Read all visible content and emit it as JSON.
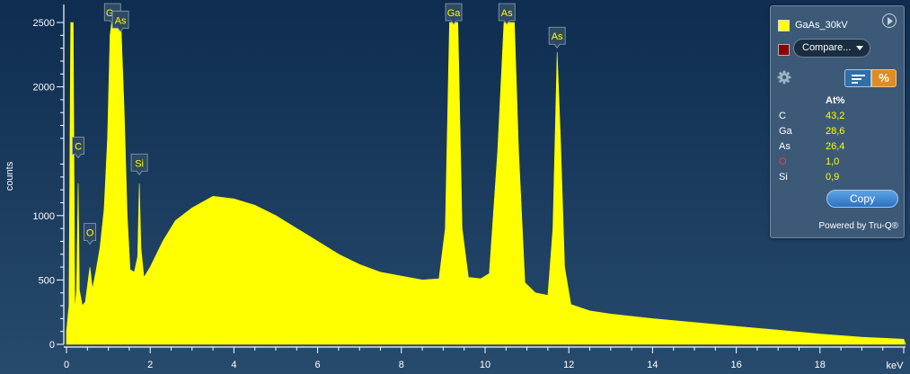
{
  "chart_data": {
    "type": "area",
    "ylabel": "counts",
    "xlabel": "keV",
    "xlim": [
      0,
      20
    ],
    "ylim": [
      0,
      2500
    ],
    "x_ticks": [
      "0",
      "2",
      "4",
      "6",
      "8",
      "10",
      "12",
      "14",
      "16",
      "18"
    ],
    "y_ticks": [
      "0",
      "500",
      "1000",
      "2000",
      "2500"
    ],
    "series": [
      {
        "name": "GaAs_30kV",
        "points": [
          [
            0.0,
            100
          ],
          [
            0.06,
            300
          ],
          [
            0.1,
            2500
          ],
          [
            0.16,
            2500
          ],
          [
            0.2,
            260
          ],
          [
            0.24,
            420
          ],
          [
            0.28,
            1250
          ],
          [
            0.31,
            420
          ],
          [
            0.38,
            300
          ],
          [
            0.45,
            330
          ],
          [
            0.52,
            500
          ],
          [
            0.56,
            600
          ],
          [
            0.62,
            430
          ],
          [
            0.7,
            560
          ],
          [
            0.8,
            750
          ],
          [
            0.9,
            1050
          ],
          [
            0.98,
            1600
          ],
          [
            1.04,
            2400
          ],
          [
            1.08,
            2500
          ],
          [
            1.3,
            2500
          ],
          [
            1.38,
            1800
          ],
          [
            1.45,
            1000
          ],
          [
            1.52,
            580
          ],
          [
            1.62,
            560
          ],
          [
            1.7,
            680
          ],
          [
            1.74,
            1250
          ],
          [
            1.78,
            750
          ],
          [
            1.85,
            520
          ],
          [
            2.0,
            600
          ],
          [
            2.3,
            800
          ],
          [
            2.6,
            960
          ],
          [
            3.0,
            1060
          ],
          [
            3.5,
            1150
          ],
          [
            4.0,
            1130
          ],
          [
            4.5,
            1080
          ],
          [
            5.0,
            1000
          ],
          [
            5.5,
            900
          ],
          [
            6.0,
            800
          ],
          [
            6.5,
            700
          ],
          [
            7.0,
            620
          ],
          [
            7.5,
            560
          ],
          [
            8.0,
            530
          ],
          [
            8.5,
            500
          ],
          [
            8.9,
            510
          ],
          [
            9.05,
            900
          ],
          [
            9.15,
            2500
          ],
          [
            9.35,
            2500
          ],
          [
            9.45,
            900
          ],
          [
            9.6,
            520
          ],
          [
            9.9,
            510
          ],
          [
            10.1,
            550
          ],
          [
            10.3,
            1500
          ],
          [
            10.45,
            2500
          ],
          [
            10.7,
            2500
          ],
          [
            10.8,
            1500
          ],
          [
            10.95,
            480
          ],
          [
            11.2,
            400
          ],
          [
            11.5,
            380
          ],
          [
            11.62,
            900
          ],
          [
            11.72,
            2270
          ],
          [
            11.8,
            1600
          ],
          [
            11.9,
            600
          ],
          [
            12.05,
            310
          ],
          [
            12.5,
            260
          ],
          [
            13,
            235
          ],
          [
            14,
            200
          ],
          [
            15,
            170
          ],
          [
            16,
            140
          ],
          [
            17,
            110
          ],
          [
            18,
            80
          ],
          [
            19,
            55
          ],
          [
            20,
            40
          ]
        ]
      }
    ],
    "peak_labels": [
      {
        "label": "Ga",
        "x": 1.1,
        "y": 2500
      },
      {
        "label": "As",
        "x": 1.29,
        "y": 2400
      },
      {
        "label": "C",
        "x": 0.28,
        "y": 1420
      },
      {
        "label": "Si",
        "x": 1.74,
        "y": 1290
      },
      {
        "label": "O",
        "x": 0.56,
        "y": 750
      },
      {
        "label": "Ga",
        "x": 9.25,
        "y": 2500
      },
      {
        "label": "As",
        "x": 10.52,
        "y": 2500
      },
      {
        "label": "As",
        "x": 11.72,
        "y": 2275
      }
    ]
  },
  "colors": {
    "background_top": "#0e2d50",
    "background_bottom": "#274a6d",
    "spectrum": "#ffff00",
    "label_box": "#2f4a63"
  },
  "panel": {
    "spectrum_name": "GaAs_30kV",
    "compare_label": "Compare...",
    "percent_button": "%",
    "header": "At%",
    "rows": [
      {
        "el": "C",
        "val": "43,2",
        "color": "#ffffff"
      },
      {
        "el": "Ga",
        "val": "28,6",
        "color": "#ffffff"
      },
      {
        "el": "As",
        "val": "26,4",
        "color": "#ffffff"
      },
      {
        "el": "O",
        "val": "1,0",
        "color": "#ff3b3b"
      },
      {
        "el": "Si",
        "val": "0,9",
        "color": "#ffffff"
      }
    ],
    "copy_label": "Copy",
    "powered_by": "Powered by Tru-Q®"
  }
}
